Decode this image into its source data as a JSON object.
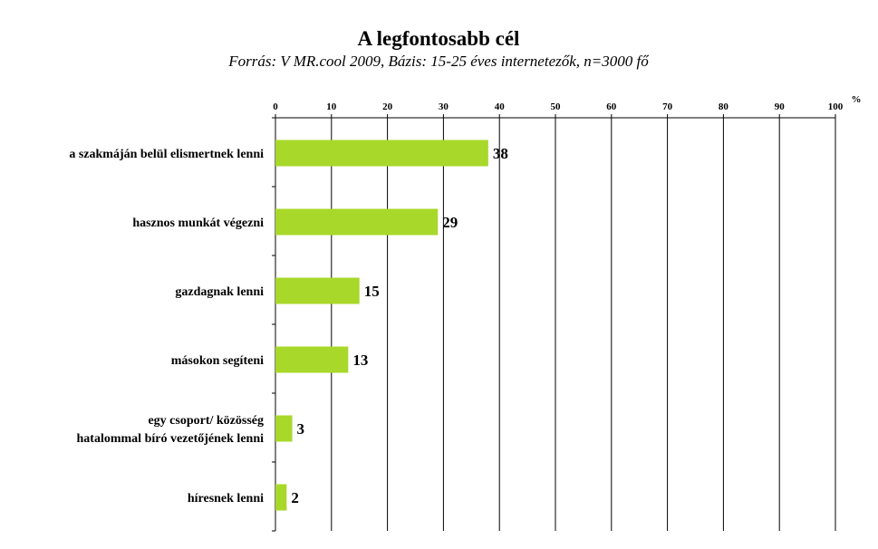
{
  "chart_data": {
    "type": "bar",
    "orientation": "horizontal",
    "title": "A legfontosabb cél",
    "subtitle": "Forrás: V MR.cool 2009, Bázis: 15-25 éves internetezők, n=3000 fő",
    "unit_label": "%",
    "categories": [
      [
        "a szakmáján belül elismertnek lenni"
      ],
      [
        "hasznos munkát végezni"
      ],
      [
        "gazdagnak lenni"
      ],
      [
        "másokon segíteni"
      ],
      [
        "egy csoport/ közösség",
        "hatalommal bíró vezetőjének lenni"
      ],
      [
        "híresnek lenni"
      ]
    ],
    "values": [
      38,
      29,
      15,
      13,
      3,
      2
    ],
    "xlim": [
      0,
      100
    ],
    "xticks": [
      0,
      10,
      20,
      30,
      40,
      50,
      60,
      70,
      80,
      90,
      100
    ],
    "axis_position": "top",
    "grid": true,
    "legend": "none",
    "colors": {
      "bar": "#a8d82a",
      "grid": "#000000",
      "text": "#000000"
    }
  }
}
